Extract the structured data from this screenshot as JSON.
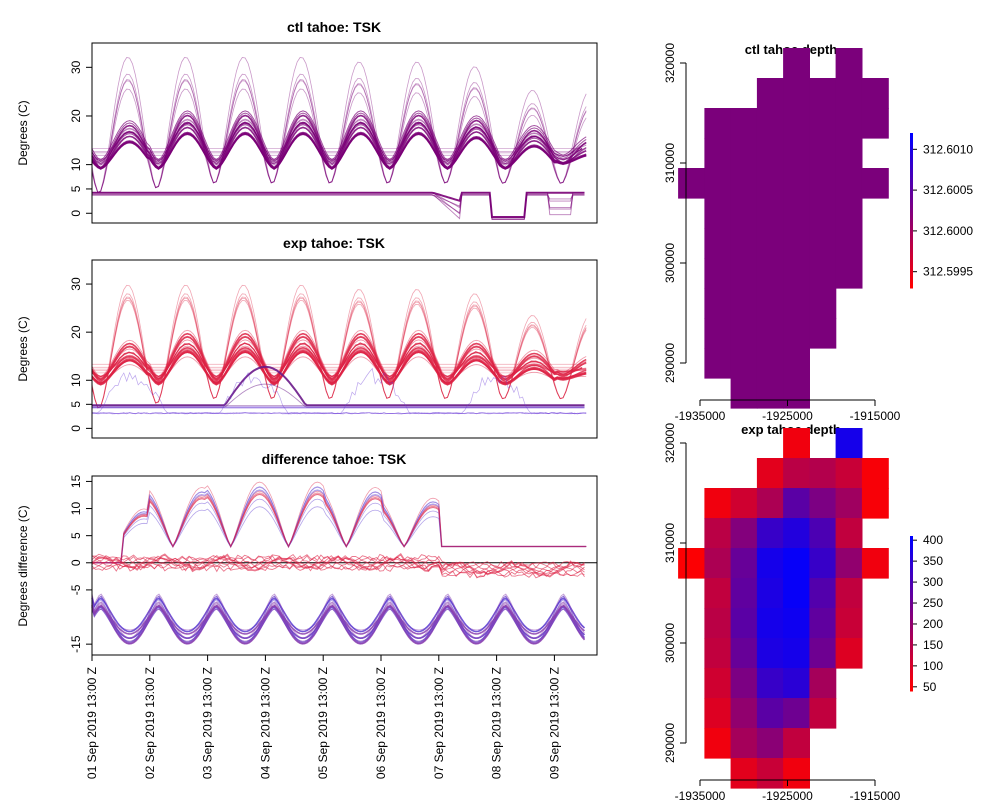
{
  "chart_data": [
    {
      "type": "line",
      "title": "ctl tahoe: TSK",
      "ylabel": "Degrees (C)",
      "ylim": [
        -2,
        35
      ],
      "yticks": [
        0,
        5,
        10,
        20,
        30
      ],
      "x_ticks": [
        "01 Sep 2019 13:00 Z",
        "02 Sep 2019 13:00 Z",
        "03 Sep 2019 13:00 Z",
        "04 Sep 2019 13:00 Z",
        "05 Sep 2019 13:00 Z",
        "06 Sep 2019 13:00 Z",
        "07 Sep 2019 13:00 Z",
        "08 Sep 2019 13:00 Z",
        "09 Sep 2019 13:00 Z"
      ],
      "x_range_days": [
        0,
        8.55
      ],
      "series_summary": {
        "daily_peak_mean": [
          18,
          20,
          20,
          20,
          20,
          20,
          19,
          17,
          15
        ],
        "daily_peak_max": [
          33,
          33,
          33,
          33,
          32,
          32,
          31,
          26,
          26
        ],
        "night_min_mean": [
          10,
          10,
          10,
          10,
          10,
          10,
          10,
          10,
          11
        ],
        "water_baseline": 4,
        "late_dip_min": -1
      },
      "colors": {
        "lines": "#7a0077"
      }
    },
    {
      "type": "line",
      "title": "exp tahoe: TSK",
      "ylabel": "Degrees (C)",
      "ylim": [
        -2,
        35
      ],
      "yticks": [
        0,
        5,
        10,
        20,
        30
      ],
      "series_summary": {
        "daily_peak_mean": [
          17,
          19,
          19,
          19,
          19,
          19,
          17,
          15,
          14
        ],
        "daily_peak_max": [
          33,
          33,
          33,
          33,
          32,
          32,
          31,
          26,
          26
        ],
        "night_min_mean": [
          10,
          10,
          10,
          10,
          10,
          10,
          10,
          10,
          11
        ],
        "water_baseline": 4.5
      },
      "colors": {
        "warm": "#dd2244",
        "cool": "#6a3ad6",
        "base": "#6a1a8a"
      }
    },
    {
      "type": "line",
      "title": "difference tahoe: TSK",
      "ylabel": "Degrees difference (C)",
      "ylim": [
        -17,
        16
      ],
      "yticks": [
        -15,
        -5,
        0,
        5,
        10,
        15
      ],
      "series_summary": {
        "lower_band_min": -15,
        "lower_band_base": -5,
        "upper_peaks": [
          10,
          14,
          15,
          15,
          14,
          12,
          3,
          3,
          3
        ]
      },
      "colors": {
        "warm": "#dd2244",
        "cool": "#5a3ad0"
      }
    },
    {
      "type": "heatmap",
      "title": "ctl tahoe depth",
      "xticks": [
        -1935000,
        -1925000,
        -1915000
      ],
      "yticks": [
        290000,
        300000,
        310000,
        320000
      ],
      "legend_ticks": [
        "312.6010",
        "312.6005",
        "312.6000",
        "312.5995"
      ],
      "legend_range": [
        312.5993,
        312.6012
      ],
      "cell_value": 312.6002,
      "cell_color": "#7b007b"
    },
    {
      "type": "heatmap",
      "title": "exp tahoe depth",
      "xticks": [
        -1935000,
        -1925000,
        -1915000
      ],
      "yticks": [
        290000,
        300000,
        310000,
        320000
      ],
      "legend_ticks": [
        "400",
        "350",
        "300",
        "250",
        "200",
        "150",
        "100",
        "50"
      ],
      "legend_range": [
        40,
        410
      ],
      "cells_xy_value": [
        [
          -1924000,
          320000,
          60
        ],
        [
          -1918000,
          320000,
          380
        ],
        [
          -1927000,
          317000,
          80
        ],
        [
          -1924000,
          317000,
          140
        ],
        [
          -1921000,
          317000,
          150
        ],
        [
          -1918000,
          317000,
          120
        ],
        [
          -1915000,
          317000,
          50
        ],
        [
          -1933000,
          314000,
          60
        ],
        [
          -1930000,
          314000,
          110
        ],
        [
          -1927000,
          314000,
          160
        ],
        [
          -1924000,
          314000,
          280
        ],
        [
          -1921000,
          314000,
          230
        ],
        [
          -1918000,
          314000,
          180
        ],
        [
          -1915000,
          314000,
          50
        ],
        [
          -1933000,
          311000,
          140
        ],
        [
          -1930000,
          311000,
          220
        ],
        [
          -1927000,
          311000,
          330
        ],
        [
          -1924000,
          311000,
          360
        ],
        [
          -1921000,
          311000,
          300
        ],
        [
          -1918000,
          311000,
          130
        ],
        [
          -1936000,
          308000,
          45
        ],
        [
          -1933000,
          308000,
          160
        ],
        [
          -1930000,
          308000,
          260
        ],
        [
          -1927000,
          308000,
          380
        ],
        [
          -1924000,
          308000,
          400
        ],
        [
          -1921000,
          308000,
          330
        ],
        [
          -1918000,
          308000,
          200
        ],
        [
          -1915000,
          308000,
          60
        ],
        [
          -1933000,
          305000,
          130
        ],
        [
          -1930000,
          305000,
          270
        ],
        [
          -1927000,
          305000,
          370
        ],
        [
          -1924000,
          305000,
          400
        ],
        [
          -1921000,
          305000,
          290
        ],
        [
          -1918000,
          305000,
          130
        ],
        [
          -1933000,
          302000,
          140
        ],
        [
          -1930000,
          302000,
          280
        ],
        [
          -1927000,
          302000,
          380
        ],
        [
          -1924000,
          302000,
          390
        ],
        [
          -1921000,
          302000,
          270
        ],
        [
          -1918000,
          302000,
          120
        ],
        [
          -1933000,
          299000,
          130
        ],
        [
          -1930000,
          299000,
          260
        ],
        [
          -1927000,
          299000,
          370
        ],
        [
          -1924000,
          299000,
          380
        ],
        [
          -1921000,
          299000,
          250
        ],
        [
          -1918000,
          299000,
          90
        ],
        [
          -1933000,
          296000,
          110
        ],
        [
          -1930000,
          296000,
          230
        ],
        [
          -1927000,
          296000,
          330
        ],
        [
          -1924000,
          296000,
          350
        ],
        [
          -1921000,
          296000,
          170
        ],
        [
          -1933000,
          293000,
          90
        ],
        [
          -1930000,
          293000,
          200
        ],
        [
          -1927000,
          293000,
          280
        ],
        [
          -1924000,
          293000,
          250
        ],
        [
          -1921000,
          293000,
          130
        ],
        [
          -1933000,
          290000,
          60
        ],
        [
          -1930000,
          290000,
          170
        ],
        [
          -1927000,
          290000,
          210
        ],
        [
          -1924000,
          290000,
          130
        ],
        [
          -1930000,
          287000,
          80
        ],
        [
          -1927000,
          287000,
          120
        ],
        [
          -1924000,
          287000,
          60
        ]
      ]
    }
  ]
}
